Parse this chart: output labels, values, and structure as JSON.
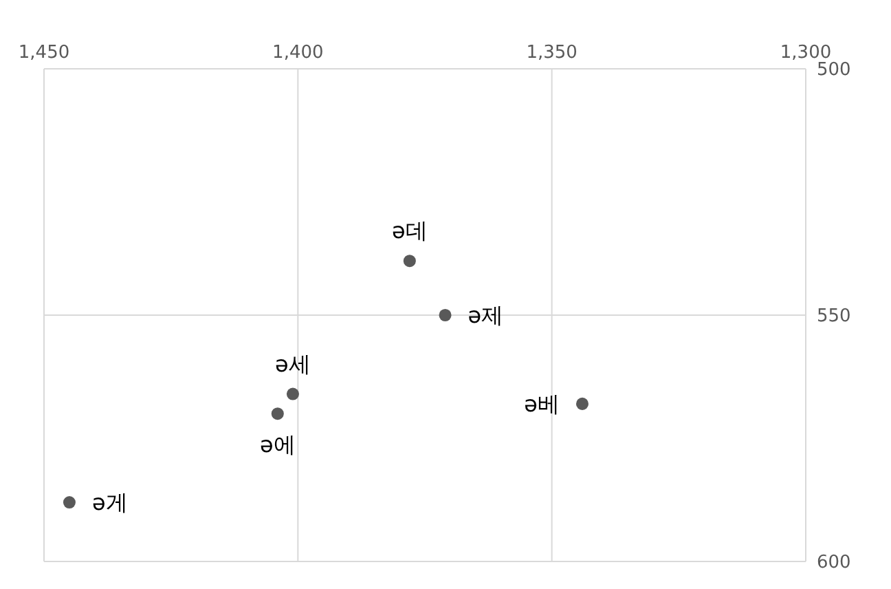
{
  "chart_data": {
    "type": "scatter",
    "series": [
      {
        "name": "ə데",
        "color": "#595959",
        "x": [
          1378
        ],
        "values": [
          539
        ]
      },
      {
        "name": "ə제",
        "color": "#595959",
        "x": [
          1371
        ],
        "values": [
          550
        ]
      },
      {
        "name": "ə세",
        "color": "#595959",
        "x": [
          1401
        ],
        "values": [
          566
        ]
      },
      {
        "name": "ə에",
        "color": "#595959",
        "x": [
          1404
        ],
        "values": [
          570
        ]
      },
      {
        "name": "ə베",
        "color": "#595959",
        "x": [
          1344
        ],
        "values": [
          568
        ]
      },
      {
        "name": "ə게",
        "color": "#595959",
        "x": [
          1445
        ],
        "values": [
          588
        ]
      }
    ],
    "xlim": [
      1450,
      1300
    ],
    "xticks": [
      {
        "value": 1450,
        "label": "1,450"
      },
      {
        "value": 1400,
        "label": "1,400"
      },
      {
        "value": 1350,
        "label": "1,350"
      },
      {
        "value": 1300,
        "label": "1,300"
      }
    ],
    "ylim": [
      600,
      500
    ],
    "yticks": [
      500,
      550,
      600
    ],
    "grid": true,
    "legend": false,
    "marker": "circle"
  }
}
